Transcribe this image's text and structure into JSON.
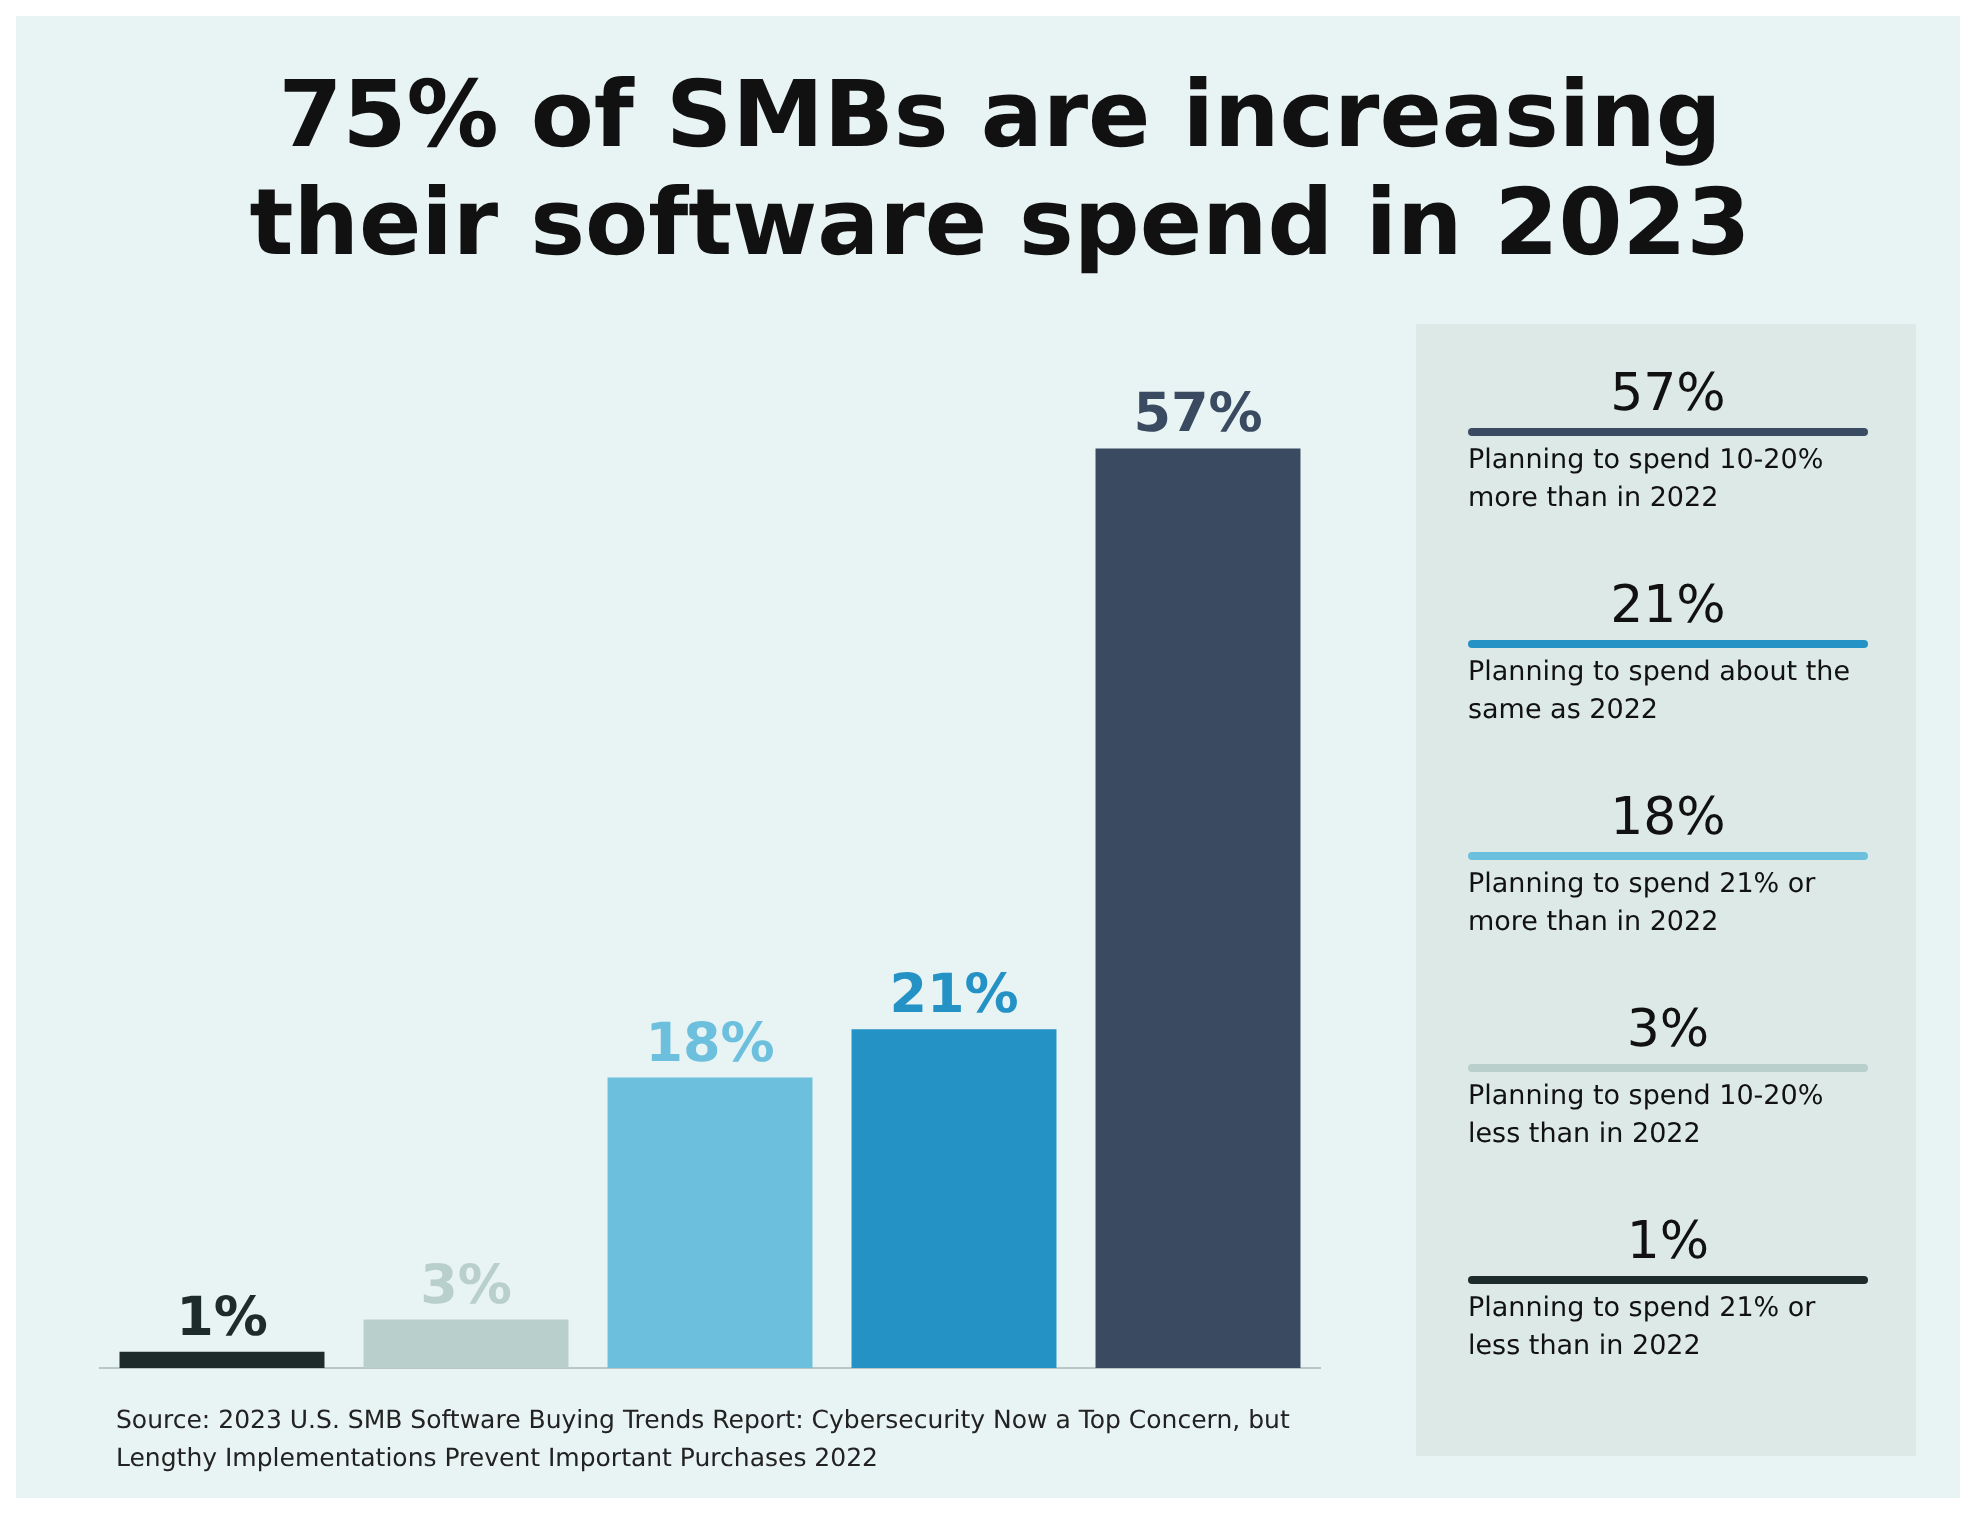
{
  "chart_data": [
    {
      "type": "bar",
      "title": "75% of SMBs are increasing their software spend in 2023",
      "categories": [
        null,
        null,
        null,
        null,
        null
      ],
      "values": [
        1,
        3,
        18,
        21,
        57
      ],
      "colors": [
        "#1e2b2b",
        "#b8cfcc",
        "#6cc0de",
        "#2592c6",
        "#3a4a60"
      ],
      "value_labels": [
        "1%",
        "3%",
        "18%",
        "21%",
        "57%"
      ],
      "annotations": [
        "Source: 2023 U.S. SMB Software Buying Trends Report: Cybersecurity Now a Top Concern, but Lengthy Implementations Prevent Important Purchases 2022"
      ]
    },
    {
      "type": "other",
      "annotations": [
        "57%",
        "Planning to spend 10-20% more than in 2022",
        "21%",
        "Planning to spend about the same as 2022",
        "18%",
        "Planning to spend 21% or more than in 2022",
        "3%",
        "Planning to spend 10-20% less than in 2022",
        "1%",
        "Planning to spend 21% or less than in 2022"
      ]
    }
  ]
}
